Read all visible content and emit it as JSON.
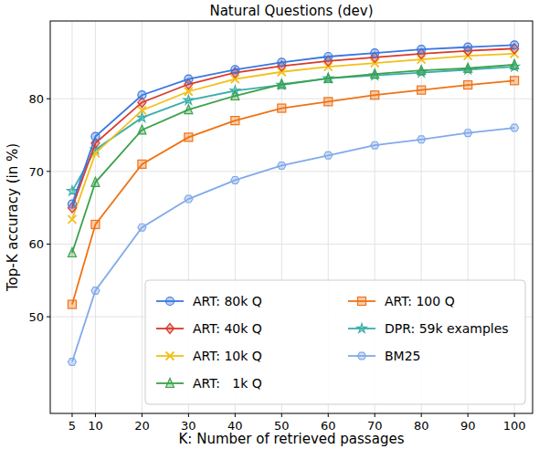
{
  "chart_data": {
    "type": "line",
    "title": "Natural Questions (dev)",
    "x_label": "K: Number of retrieved passages",
    "y_label": "Top-K accuracy (in %)",
    "x": [
      5,
      10,
      20,
      30,
      40,
      50,
      60,
      70,
      80,
      90,
      100
    ],
    "xlim": [
      0.3,
      103.9
    ],
    "xticks": [
      5,
      10,
      20,
      30,
      40,
      50,
      60,
      70,
      80,
      90,
      100
    ],
    "ylim": [
      36.7,
      90.7
    ],
    "yticks": [
      50,
      60,
      70,
      80
    ],
    "grid": true,
    "legend": "lower right",
    "series": [
      {
        "name": "ART: 80k Q",
        "color": "#3a78e0",
        "marker": "circle",
        "values": [
          65.5,
          74.8,
          80.5,
          82.7,
          84.0,
          85.0,
          85.8,
          86.3,
          86.8,
          87.1,
          87.4
        ]
      },
      {
        "name": "ART: 40k Q",
        "color": "#d93a2b",
        "marker": "diamond",
        "values": [
          65.0,
          73.9,
          79.5,
          82.0,
          83.6,
          84.5,
          85.2,
          85.7,
          86.2,
          86.6,
          86.9
        ]
      },
      {
        "name": "ART: 10k Q",
        "color": "#f2c01a",
        "marker": "x",
        "values": [
          63.4,
          72.5,
          78.4,
          81.0,
          82.7,
          83.7,
          84.4,
          84.9,
          85.4,
          85.9,
          86.2
        ]
      },
      {
        "name": "ART:   1k Q",
        "color": "#3aa24a",
        "marker": "triangle",
        "values": [
          58.8,
          68.5,
          75.7,
          78.5,
          80.4,
          82.0,
          82.8,
          83.4,
          83.9,
          84.2,
          84.7
        ]
      },
      {
        "name": "ART: 100 Q",
        "color": "#f07214",
        "marker": "square",
        "values": [
          51.7,
          62.7,
          71.0,
          74.7,
          77.0,
          78.7,
          79.6,
          80.5,
          81.2,
          81.9,
          82.5
        ]
      },
      {
        "name": "DPR: 59k examples",
        "color": "#3aaeaa",
        "marker": "star",
        "values": [
          67.3,
          73.0,
          77.4,
          79.8,
          81.1,
          81.9,
          82.8,
          83.2,
          83.6,
          84.0,
          84.4
        ]
      },
      {
        "name": "BM25",
        "color": "#80aaea",
        "marker": "hexagon",
        "values": [
          43.8,
          53.6,
          62.3,
          66.2,
          68.8,
          70.8,
          72.2,
          73.6,
          74.4,
          75.3,
          76.0
        ]
      }
    ]
  }
}
